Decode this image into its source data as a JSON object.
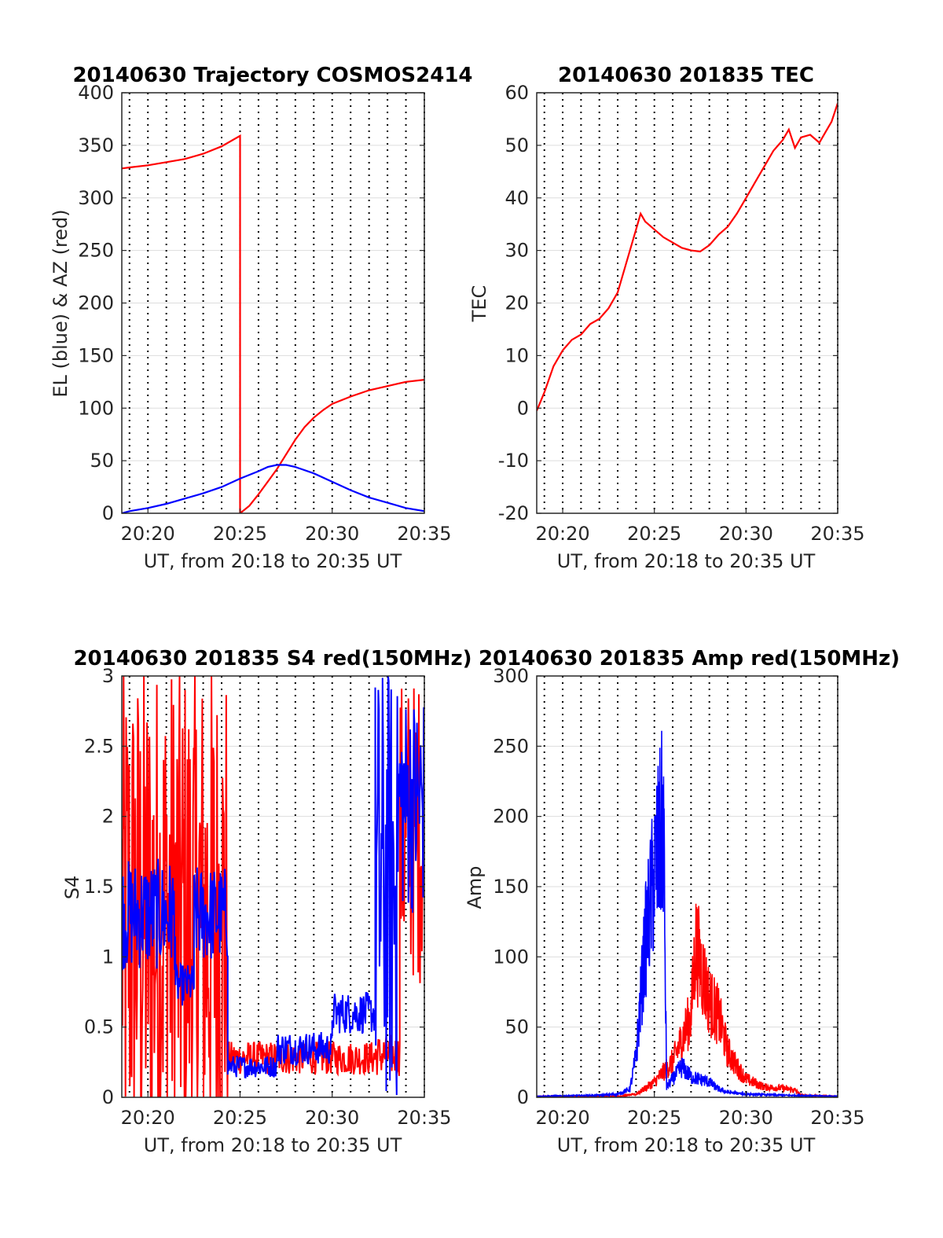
{
  "figure": {
    "background": "#ffffff",
    "colors": {
      "az": "#ff0000",
      "el": "#0000ff",
      "tec": "#ff0000",
      "red": "#ff0000",
      "blue": "#0000ff",
      "grid_major": "#dddddd",
      "grid_minor": "#000000"
    }
  },
  "chart_data": [
    {
      "type": "line",
      "title": "20140630 Trajectory COSMOS2414",
      "xlabel": "UT, from 20:18 to 20:35 UT",
      "ylabel": "EL (blue) & AZ (red)",
      "xlim": [
        "20:18:35",
        "20:35:00"
      ],
      "ylim": [
        0,
        400
      ],
      "xticks": [
        "20:20",
        "20:25",
        "20:30",
        "20:35"
      ],
      "yticks": [
        "0",
        "50",
        "100",
        "150",
        "200",
        "250",
        "300",
        "350",
        "400"
      ],
      "vertical_dotted_grid": "every minute",
      "series": [
        {
          "color": "#ff0000",
          "points": [
            [
              "20:18:35",
              328
            ],
            [
              "20:19",
              329
            ],
            [
              "20:20",
              331
            ],
            [
              "20:21",
              334
            ],
            [
              "20:22",
              337
            ],
            [
              "20:23",
              342
            ],
            [
              "20:24",
              349
            ],
            [
              "20:25",
              359
            ],
            [
              "20:25",
              0
            ],
            [
              "20:25:30",
              7
            ],
            [
              "20:26",
              18
            ],
            [
              "20:26:30",
              30
            ],
            [
              "20:27",
              42
            ],
            [
              "20:27:30",
              56
            ],
            [
              "20:28",
              70
            ],
            [
              "20:28:30",
              82
            ],
            [
              "20:29",
              91
            ],
            [
              "20:29:30",
              98
            ],
            [
              "20:30",
              104
            ],
            [
              "20:31",
              111
            ],
            [
              "20:32",
              117
            ],
            [
              "20:33",
              121
            ],
            [
              "20:34",
              125
            ],
            [
              "20:35",
              127
            ]
          ]
        },
        {
          "color": "#0000ff",
          "points": [
            [
              "20:18:35",
              0
            ],
            [
              "20:19",
              2
            ],
            [
              "20:20",
              5
            ],
            [
              "20:21",
              9
            ],
            [
              "20:22",
              14
            ],
            [
              "20:23",
              19
            ],
            [
              "20:24",
              25
            ],
            [
              "20:25",
              33
            ],
            [
              "20:26",
              40
            ],
            [
              "20:26:30",
              44
            ],
            [
              "20:27",
              46
            ],
            [
              "20:27:30",
              46
            ],
            [
              "20:28",
              44
            ],
            [
              "20:29",
              38
            ],
            [
              "20:30",
              30
            ],
            [
              "20:31",
              22
            ],
            [
              "20:32",
              15
            ],
            [
              "20:33",
              10
            ],
            [
              "20:34",
              5
            ],
            [
              "20:35",
              2
            ]
          ]
        }
      ]
    },
    {
      "type": "line",
      "title": "20140630 201835 TEC",
      "xlabel": "UT, from 20:18 to 20:35 UT",
      "ylabel": "TEC",
      "xlim": [
        "20:18:35",
        "20:35:00"
      ],
      "ylim": [
        -20,
        60
      ],
      "xticks": [
        "20:20",
        "20:25",
        "20:30",
        "20:35"
      ],
      "yticks": [
        "-20",
        "-10",
        "0",
        "10",
        "20",
        "30",
        "40",
        "50",
        "60"
      ],
      "vertical_dotted_grid": "every minute",
      "series": [
        {
          "color": "#ff0000",
          "points": [
            [
              "20:18:35",
              -0.5
            ],
            [
              "20:19",
              3
            ],
            [
              "20:19:30",
              8
            ],
            [
              "20:20",
              11
            ],
            [
              "20:20:30",
              13
            ],
            [
              "20:21",
              14
            ],
            [
              "20:21:30",
              16
            ],
            [
              "20:22",
              17
            ],
            [
              "20:22:30",
              19
            ],
            [
              "20:23",
              22
            ],
            [
              "20:23:30",
              28
            ],
            [
              "20:24",
              34
            ],
            [
              "20:24:15",
              37
            ],
            [
              "20:24:30",
              35.5
            ],
            [
              "20:25",
              34
            ],
            [
              "20:25:30",
              32.5
            ],
            [
              "20:26",
              31.5
            ],
            [
              "20:26:30",
              30.5
            ],
            [
              "20:27",
              30
            ],
            [
              "20:27:30",
              29.8
            ],
            [
              "20:28",
              31
            ],
            [
              "20:28:30",
              33
            ],
            [
              "20:29",
              34.5
            ],
            [
              "20:29:30",
              37
            ],
            [
              "20:30",
              40
            ],
            [
              "20:30:30",
              43
            ],
            [
              "20:31",
              46
            ],
            [
              "20:31:30",
              49
            ],
            [
              "20:32",
              51
            ],
            [
              "20:32:20",
              53
            ],
            [
              "20:32:40",
              49.5
            ],
            [
              "20:33",
              51.5
            ],
            [
              "20:33:30",
              52
            ],
            [
              "20:34",
              50.5
            ],
            [
              "20:34:20",
              52.5
            ],
            [
              "20:34:40",
              54.5
            ],
            [
              "20:35",
              58
            ]
          ]
        }
      ]
    },
    {
      "type": "line",
      "title": "20140630 201835 S4 red(150MHz)",
      "xlabel": "UT, from 20:18 to 20:35 UT",
      "ylabel": "S4",
      "xlim": [
        "20:18:35",
        "20:35:00"
      ],
      "ylim": [
        0,
        3
      ],
      "xticks": [
        "20:20",
        "20:25",
        "20:30",
        "20:35"
      ],
      "yticks": [
        "0",
        "0.5",
        "1",
        "1.5",
        "2",
        "2.5",
        "3"
      ],
      "vertical_dotted_grid": "every minute",
      "series": [
        {
          "color": "#ff0000",
          "segments": [
            {
              "from": "20:18:35",
              "to": "20:24:20",
              "center": 1.25,
              "spread": 1.9
            },
            {
              "from": "20:24:20",
              "to": "20:32:20",
              "center": 0.28,
              "spread": 0.12
            },
            {
              "from": "20:32:20",
              "to": "20:33:40",
              "center": 0.3,
              "spread": 0.15
            },
            {
              "from": "20:33:40",
              "to": "20:35:00",
              "center": 1.9,
              "spread": 1.1
            }
          ]
        },
        {
          "color": "#0000ff",
          "segments": [
            {
              "from": "20:18:35",
              "to": "20:21:30",
              "center": 1.3,
              "spread": 0.4
            },
            {
              "from": "20:21:30",
              "to": "20:22:30",
              "center": 0.8,
              "spread": 0.15
            },
            {
              "from": "20:22:30",
              "to": "20:24:20",
              "center": 1.3,
              "spread": 0.35
            },
            {
              "from": "20:24:20",
              "to": "20:27:00",
              "center": 0.22,
              "spread": 0.08
            },
            {
              "from": "20:27:00",
              "to": "20:30:00",
              "center": 0.35,
              "spread": 0.12
            },
            {
              "from": "20:30:00",
              "to": "20:32:20",
              "center": 0.6,
              "spread": 0.15
            },
            {
              "from": "20:32:20",
              "to": "20:33:30",
              "center": 1.5,
              "spread": 1.6
            },
            {
              "from": "20:33:30",
              "to": "20:35:00",
              "center": 2.1,
              "spread": 0.8
            }
          ]
        }
      ]
    },
    {
      "type": "line",
      "title": "20140630 201835 Amp red(150MHz)",
      "xlabel": "UT, from 20:18 to 20:35 UT",
      "ylabel": "Amp",
      "xlim": [
        "20:18:35",
        "20:35:00"
      ],
      "ylim": [
        0,
        300
      ],
      "xticks": [
        "20:20",
        "20:25",
        "20:30",
        "20:35"
      ],
      "yticks": [
        "0",
        "50",
        "100",
        "150",
        "200",
        "250",
        "300"
      ],
      "vertical_dotted_grid": "every minute",
      "series": [
        {
          "color": "#ff0000",
          "envelope": [
            [
              "20:18:35",
              1
            ],
            [
              "20:23",
              1
            ],
            [
              "20:24",
              3
            ],
            [
              "20:25",
              15
            ],
            [
              "20:26",
              35
            ],
            [
              "20:27",
              80
            ],
            [
              "20:27:15",
              150
            ],
            [
              "20:28",
              95
            ],
            [
              "20:28:30",
              80
            ],
            [
              "20:29",
              45
            ],
            [
              "20:29:30",
              30
            ],
            [
              "20:30",
              18
            ],
            [
              "20:31",
              10
            ],
            [
              "20:32",
              9
            ],
            [
              "20:32:40",
              7
            ],
            [
              "20:33",
              2
            ],
            [
              "20:35",
              1
            ]
          ]
        },
        {
          "color": "#0000ff",
          "envelope": [
            [
              "20:18:35",
              1
            ],
            [
              "20:22",
              2
            ],
            [
              "20:23",
              3
            ],
            [
              "20:23:40",
              8
            ],
            [
              "20:24",
              40
            ],
            [
              "20:24:30",
              150
            ],
            [
              "20:25",
              220
            ],
            [
              "20:25:30",
              272
            ],
            [
              "20:25:40",
              10
            ],
            [
              "20:26:30",
              30
            ],
            [
              "20:27",
              20
            ],
            [
              "20:28",
              15
            ],
            [
              "20:28:30",
              8
            ],
            [
              "20:29",
              5
            ],
            [
              "20:30",
              3
            ],
            [
              "20:32",
              2
            ],
            [
              "20:35",
              1
            ]
          ]
        }
      ]
    }
  ]
}
